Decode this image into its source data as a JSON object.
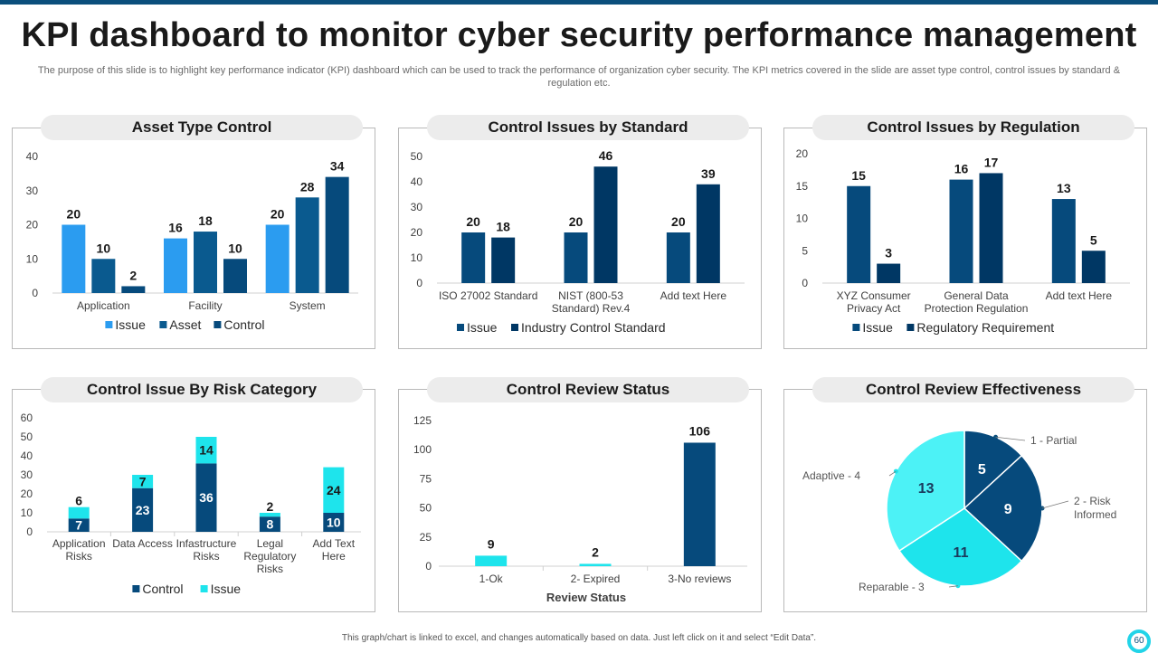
{
  "header": {
    "title": "KPI dashboard to monitor cyber security performance management",
    "subtitle": "The purpose of this slide is to highlight key performance indicator (KPI) dashboard which can be used to track the performance of organization cyber security. The KPI metrics covered in the slide are asset type control, control issues by standard & regulation etc."
  },
  "footer": {
    "note": "This graph/chart is linked to excel, and changes automatically based on data. Just left click on it and select “Edit Data”.",
    "page": "60"
  },
  "colors": {
    "light_blue": "#2b9cf0",
    "mid_blue": "#0a5a8f",
    "dark_blue": "#064a7c",
    "navy": "#003764",
    "cyan": "#1ee4ec",
    "pie_light": "#4cf2f6"
  },
  "chart_data": [
    {
      "id": "asset",
      "type": "bar",
      "title": "Asset Type Control",
      "categories": [
        [
          "Application"
        ],
        [
          "Facility"
        ],
        [
          "System"
        ]
      ],
      "series": [
        {
          "name": "Issue",
          "values": [
            20,
            16,
            20
          ],
          "color": "#2b9cf0"
        },
        {
          "name": "Asset",
          "values": [
            10,
            18,
            28
          ],
          "color": "#0a5a8f"
        },
        {
          "name": "Control",
          "values": [
            2,
            10,
            34
          ],
          "color": "#064a7c"
        }
      ],
      "ylim": [
        0,
        40
      ],
      "yticks": [
        0,
        10,
        20,
        30,
        40
      ]
    },
    {
      "id": "standard",
      "type": "bar",
      "title": "Control Issues by Standard",
      "categories": [
        [
          "ISO 27002 Standard"
        ],
        [
          "NIST (800-53",
          "Standard) Rev.4"
        ],
        [
          "Add text Here"
        ]
      ],
      "series": [
        {
          "name": "Issue",
          "values": [
            20,
            20,
            20
          ],
          "color": "#064a7c"
        },
        {
          "name": "Industry Control Standard",
          "values": [
            18,
            46,
            39
          ],
          "color": "#003764"
        }
      ],
      "ylim": [
        0,
        50
      ],
      "yticks": [
        0,
        10,
        20,
        30,
        40,
        50
      ]
    },
    {
      "id": "regulation",
      "type": "bar",
      "title": "Control Issues by Regulation",
      "categories": [
        [
          "XYZ Consumer",
          "Privacy Act"
        ],
        [
          "General Data",
          "Protection Regulation"
        ],
        [
          "Add text Here"
        ]
      ],
      "series": [
        {
          "name": "Issue",
          "values": [
            15,
            16,
            13
          ],
          "color": "#064a7c"
        },
        {
          "name": "Regulatory Requirement",
          "values": [
            3,
            17,
            5
          ],
          "color": "#003764"
        }
      ],
      "ylim": [
        0,
        20
      ],
      "yticks": [
        0,
        5,
        10,
        15,
        20
      ]
    },
    {
      "id": "risk",
      "type": "stacked-bar",
      "title": "Control Issue By Risk Category",
      "categories": [
        [
          "Application",
          "Risks"
        ],
        [
          "Data Access"
        ],
        [
          "Infastructure",
          "Risks"
        ],
        [
          "Legal",
          "Regulatory",
          "Risks"
        ],
        [
          "Add Text",
          "Here"
        ]
      ],
      "series": [
        {
          "name": "Control",
          "values": [
            7,
            23,
            36,
            8,
            10
          ],
          "color": "#064a7c"
        },
        {
          "name": "Issue",
          "values": [
            6,
            7,
            14,
            2,
            24
          ],
          "color": "#1ee4ec"
        }
      ],
      "ylim": [
        0,
        60
      ],
      "yticks": [
        0,
        10,
        20,
        30,
        40,
        50,
        60
      ]
    },
    {
      "id": "review",
      "type": "bar",
      "title": "Control Review Status",
      "xlabel": "Review Status",
      "categories": [
        [
          "1-Ok"
        ],
        [
          "2- Expired"
        ],
        [
          "3-No reviews"
        ]
      ],
      "values": [
        9,
        2,
        106
      ],
      "colors": [
        "#1ee4ec",
        "#1ee4ec",
        "#064a7c"
      ],
      "ylim": [
        0,
        125
      ],
      "yticks": [
        0,
        25,
        50,
        75,
        100,
        125
      ]
    },
    {
      "id": "effectiveness",
      "type": "pie",
      "title": "Control Review Effectiveness",
      "slices": [
        {
          "label": "1 - Partial",
          "value": 5,
          "color": "#064a7c"
        },
        {
          "label": "2 - Risk Informed",
          "value": 9,
          "color": "#064a7c"
        },
        {
          "label": "Reparable  - 3",
          "value": 11,
          "color": "#1ee4ec"
        },
        {
          "label": "Adaptive  - 4",
          "value": 13,
          "color": "#4cf2f6"
        }
      ]
    }
  ]
}
